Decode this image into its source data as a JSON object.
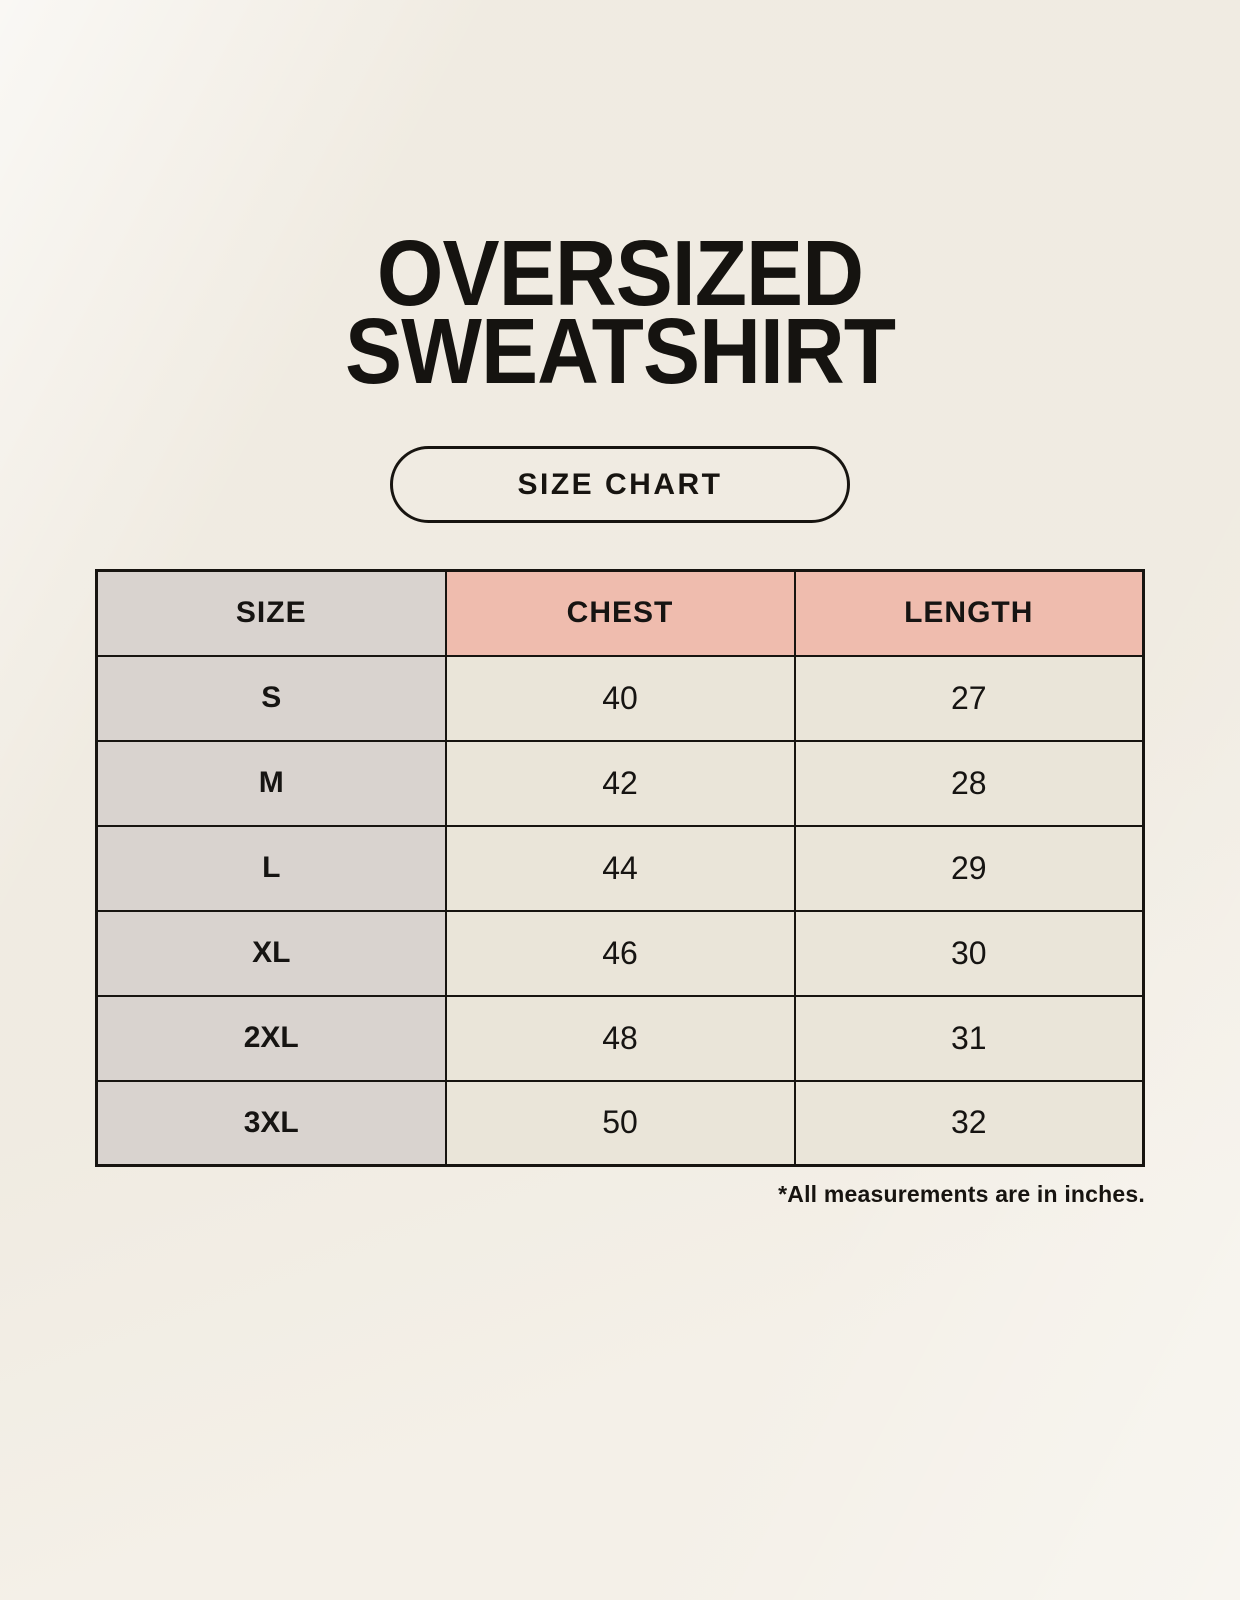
{
  "header": {
    "title_line1": "OVERSIZED",
    "title_line2": "SWEATSHIRT"
  },
  "badge": {
    "label": "SIZE CHART"
  },
  "chart_data": {
    "type": "table",
    "title": "OVERSIZED SWEATSHIRT",
    "subtitle": "SIZE CHART",
    "columns": [
      "SIZE",
      "CHEST",
      "LENGTH"
    ],
    "rows": [
      [
        "S",
        "40",
        "27"
      ],
      [
        "M",
        "42",
        "28"
      ],
      [
        "L",
        "44",
        "29"
      ],
      [
        "XL",
        "46",
        "30"
      ],
      [
        "2XL",
        "48",
        "31"
      ],
      [
        "3XL",
        "50",
        "32"
      ]
    ],
    "note": "*All measurements are in inches.",
    "units": "inches"
  },
  "footnote": {
    "text": "*All measurements are in inches."
  },
  "colors": {
    "background": "#f4f0e8",
    "header_gray": "#d9d3cf",
    "header_pink": "#efbcae",
    "cell_cream": "#eae5d9",
    "border": "#171410",
    "text": "#151310"
  }
}
